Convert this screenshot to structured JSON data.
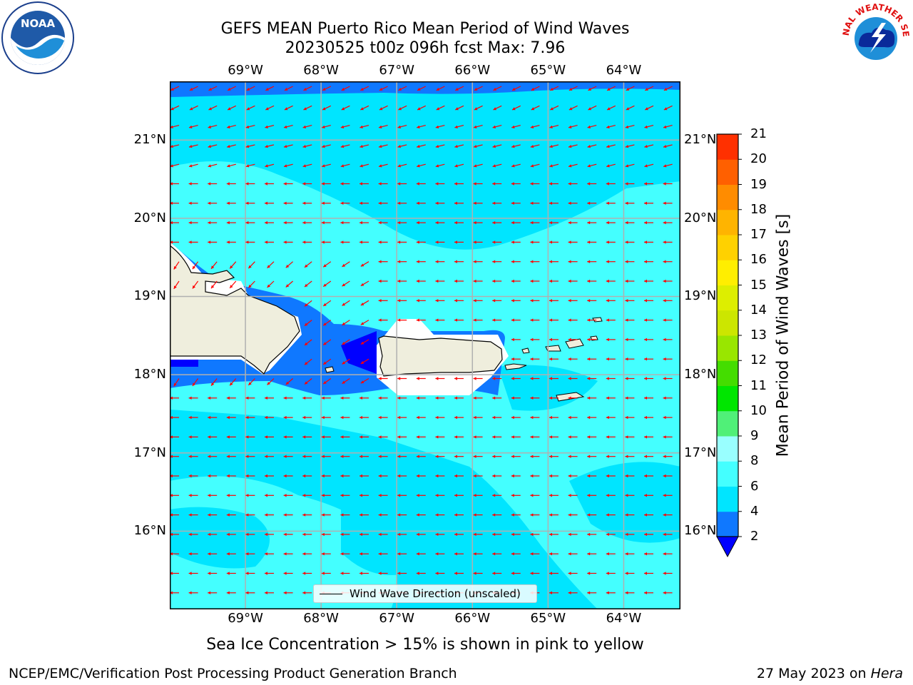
{
  "title": {
    "line1": "GEFS MEAN Puerto Rico Mean Period of Wind Waves",
    "line2": "20230525 t00z 096h fcst   Max: 7.96"
  },
  "logos": {
    "left": "NOAA",
    "right": "NATIONAL WEATHER SERVICE"
  },
  "map": {
    "lon_range": [
      -70,
      -63.25
    ],
    "lat_range": [
      15,
      21.75
    ],
    "lon_ticks": [
      "69°W",
      "68°W",
      "67°W",
      "66°W",
      "65°W",
      "64°W"
    ],
    "lon_tick_values": [
      -69,
      -68,
      -67,
      -66,
      -65,
      -64
    ],
    "lat_ticks": [
      "21°N",
      "20°N",
      "19°N",
      "18°N",
      "17°N",
      "16°N"
    ],
    "lat_tick_values": [
      21,
      20,
      19,
      18,
      17,
      16
    ],
    "vector_color": "#ff0000",
    "legend_label": "Wind Wave Direction (unscaled)"
  },
  "colorbar": {
    "title": "Mean Period of Wind Waves [s]",
    "levels": [
      "2",
      "4",
      "6",
      "8",
      "9",
      "10",
      "11",
      "12",
      "13",
      "14",
      "15",
      "16",
      "17",
      "18",
      "19",
      "20",
      "21"
    ],
    "colors": [
      "#0f78ff",
      "#00e5ff",
      "#44ffff",
      "#99ffff",
      "#50f078",
      "#00e600",
      "#44dd00",
      "#99e600",
      "#cce600",
      "#ddee00",
      "#ffee00",
      "#ffd100",
      "#ffb400",
      "#ff8c00",
      "#ff6000",
      "#ff3000",
      "#ff0000"
    ],
    "extend_color": "#0000ff"
  },
  "notes": {
    "ice": "Sea Ice Concentration > 15% is shown in pink to yellow",
    "credit": "NCEP/EMC/Verification Post Processing Product Generation Branch",
    "date": "27 May 2023 on",
    "host": "Hera"
  }
}
